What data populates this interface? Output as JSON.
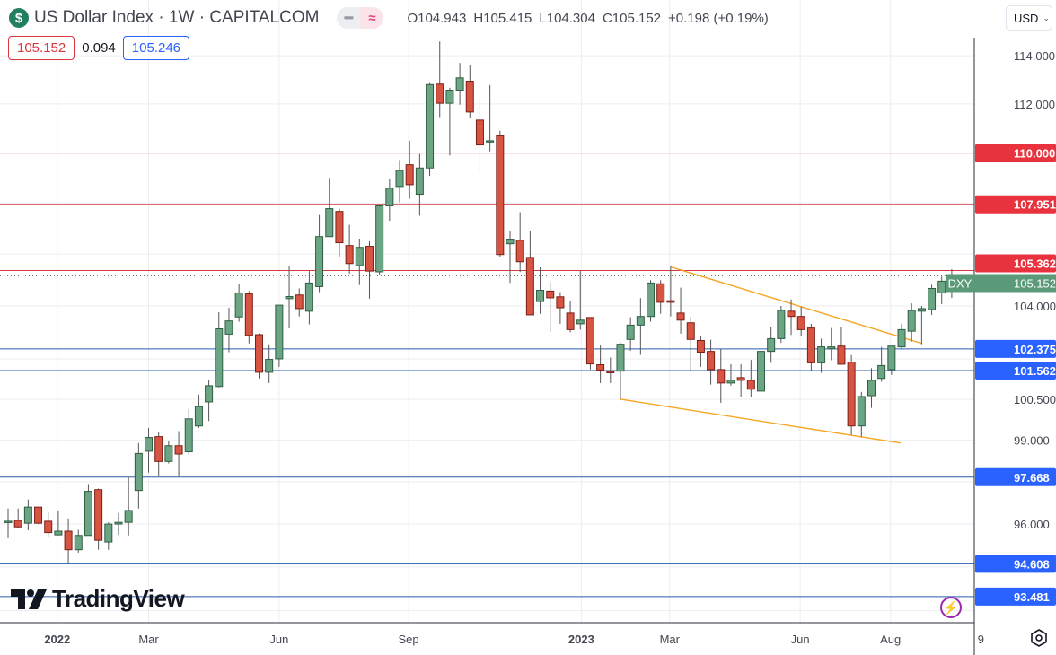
{
  "header": {
    "symbol_icon": "dollar-icon",
    "title": "US Dollar Index · 1W · CAPITALCOM",
    "ohlc": {
      "open": "O104.943",
      "high": "H105.415",
      "low": "L104.304",
      "close": "C105.152",
      "change": "+0.198 (+0.19%)"
    },
    "sell_price": "105.152",
    "spread": "0.094",
    "buy_price": "105.246"
  },
  "currency_button": "USD",
  "logo": "TradingView",
  "colors": {
    "up": "#6ba583",
    "down": "#d75442",
    "red_line": "#d9363e",
    "blue_line": "#2962ff",
    "trend": "#f5a623",
    "last": "#5b9a78"
  },
  "chart_data": {
    "type": "candlestick",
    "title": "US Dollar Index · 1W · CAPITALCOM",
    "scale": "log",
    "ylim": [
      92.9,
      115.2
    ],
    "price_ticks": [
      "114.000",
      "112.000",
      "104.000",
      "100.500",
      "99.000",
      "96.000"
    ],
    "price_tick_values": [
      114,
      112,
      104,
      100.5,
      99,
      96
    ],
    "grid_prices": [
      114,
      112,
      110,
      108,
      106,
      104,
      102,
      100.5,
      99,
      97.5,
      96,
      94.5,
      93
    ],
    "time_ticks": [
      {
        "label": "2022",
        "week": 4.9
      },
      {
        "label": "Mar",
        "week": 14
      },
      {
        "label": "Jun",
        "week": 27
      },
      {
        "label": "Sep",
        "week": 39.9
      },
      {
        "label": "2023",
        "week": 57.1
      },
      {
        "label": "Mar",
        "week": 65.9
      },
      {
        "label": "Jun",
        "week": 78.9
      },
      {
        "label": "Aug",
        "week": 87.9
      },
      {
        "label": "9",
        "week": 96.9
      }
    ],
    "candles_ohlc": [
      [
        96.1,
        96.55,
        95.5,
        96.1
      ],
      [
        96.13,
        96.55,
        95.85,
        95.9
      ],
      [
        96.03,
        96.87,
        95.78,
        96.6
      ],
      [
        96.6,
        96.6,
        96.0,
        96.03
      ],
      [
        96.1,
        96.4,
        95.55,
        95.7
      ],
      [
        95.62,
        96.48,
        95.6,
        95.75
      ],
      [
        95.75,
        96.2,
        94.6,
        95.1
      ],
      [
        95.1,
        95.8,
        95.0,
        95.6
      ],
      [
        95.6,
        97.42,
        95.6,
        97.16
      ],
      [
        97.22,
        97.26,
        95.1,
        95.43
      ],
      [
        95.37,
        96.06,
        95.1,
        96.0
      ],
      [
        96.0,
        96.39,
        95.62,
        96.06
      ],
      [
        96.06,
        97.68,
        95.6,
        96.48
      ],
      [
        97.19,
        98.9,
        96.55,
        98.52
      ],
      [
        98.6,
        99.45,
        97.83,
        99.1
      ],
      [
        99.13,
        99.3,
        97.7,
        98.23
      ],
      [
        98.23,
        98.97,
        98.16,
        98.8
      ],
      [
        98.8,
        99.33,
        97.68,
        98.5
      ],
      [
        98.58,
        100.14,
        98.48,
        99.78
      ],
      [
        99.52,
        100.67,
        99.45,
        100.23
      ],
      [
        100.4,
        101.2,
        99.7,
        101.0
      ],
      [
        100.97,
        103.76,
        100.94,
        103.13
      ],
      [
        102.93,
        103.93,
        102.25,
        103.43
      ],
      [
        103.58,
        104.85,
        103.4,
        104.5
      ],
      [
        104.46,
        104.57,
        102.58,
        102.88
      ],
      [
        102.91,
        102.95,
        101.27,
        101.5
      ],
      [
        101.5,
        102.55,
        101.1,
        101.98
      ],
      [
        102.0,
        104.03,
        101.7,
        104.03
      ],
      [
        104.28,
        105.55,
        103.15,
        104.36
      ],
      [
        104.42,
        104.67,
        103.6,
        103.9
      ],
      [
        103.8,
        105.34,
        103.3,
        104.88
      ],
      [
        104.74,
        107.53,
        104.53,
        106.68
      ],
      [
        106.68,
        109.0,
        106.68,
        107.78
      ],
      [
        107.67,
        107.78,
        105.9,
        106.44
      ],
      [
        106.33,
        107.14,
        105.24,
        105.63
      ],
      [
        105.55,
        106.6,
        104.8,
        106.26
      ],
      [
        106.3,
        106.5,
        104.28,
        105.34
      ],
      [
        105.31,
        107.96,
        105.2,
        107.89
      ],
      [
        107.89,
        108.98,
        107.3,
        108.59
      ],
      [
        108.66,
        109.72,
        108.03,
        109.3
      ],
      [
        109.53,
        110.5,
        108.17,
        108.73
      ],
      [
        108.35,
        109.96,
        107.5,
        109.4
      ],
      [
        109.4,
        112.9,
        109.08,
        112.8
      ],
      [
        112.82,
        114.6,
        111.46,
        112.03
      ],
      [
        112.03,
        112.67,
        109.9,
        112.57
      ],
      [
        112.57,
        113.7,
        111.97,
        113.08
      ],
      [
        112.94,
        113.62,
        111.43,
        111.67
      ],
      [
        111.34,
        112.3,
        109.22,
        110.33
      ],
      [
        110.45,
        112.78,
        110.07,
        110.5
      ],
      [
        110.7,
        110.9,
        105.9,
        105.98
      ],
      [
        106.4,
        106.9,
        104.88,
        106.58
      ],
      [
        106.54,
        107.64,
        105.3,
        105.7
      ],
      [
        105.87,
        106.9,
        103.66,
        103.66
      ],
      [
        104.17,
        105.48,
        103.7,
        104.6
      ],
      [
        104.57,
        104.92,
        103.0,
        104.31
      ],
      [
        104.35,
        104.53,
        103.32,
        103.93
      ],
      [
        103.73,
        104.2,
        103.0,
        103.1
      ],
      [
        103.32,
        105.34,
        103.1,
        103.46
      ],
      [
        103.56,
        103.56,
        101.6,
        101.81
      ],
      [
        101.78,
        102.5,
        101.1,
        101.58
      ],
      [
        101.53,
        102.05,
        101.1,
        101.5
      ],
      [
        101.54,
        102.6,
        100.5,
        102.55
      ],
      [
        102.73,
        103.57,
        102.3,
        103.27
      ],
      [
        103.27,
        104.3,
        102.15,
        103.6
      ],
      [
        103.6,
        104.99,
        103.4,
        104.88
      ],
      [
        104.85,
        104.99,
        103.7,
        104.14
      ],
      [
        104.2,
        105.55,
        103.6,
        104.14
      ],
      [
        103.73,
        104.7,
        102.95,
        103.46
      ],
      [
        103.36,
        103.57,
        101.54,
        102.73
      ],
      [
        102.69,
        102.86,
        101.7,
        102.25
      ],
      [
        102.28,
        102.72,
        101.04,
        101.6
      ],
      [
        101.6,
        102.38,
        100.37,
        101.1
      ],
      [
        101.1,
        101.8,
        101.0,
        101.2
      ],
      [
        101.3,
        101.8,
        100.57,
        101.2
      ],
      [
        101.2,
        101.96,
        100.57,
        100.87
      ],
      [
        100.8,
        102.3,
        100.6,
        102.28
      ],
      [
        102.28,
        103.2,
        101.85,
        102.76
      ],
      [
        102.76,
        104.0,
        102.6,
        103.83
      ],
      [
        103.8,
        104.25,
        102.9,
        103.6
      ],
      [
        103.6,
        103.97,
        102.86,
        103.1
      ],
      [
        103.16,
        103.32,
        101.57,
        101.85
      ],
      [
        101.85,
        102.76,
        101.48,
        102.45
      ],
      [
        102.38,
        103.16,
        101.95,
        102.45
      ],
      [
        102.48,
        103.2,
        101.78,
        101.8
      ],
      [
        101.88,
        102.14,
        99.2,
        99.52
      ],
      [
        99.52,
        100.77,
        99.13,
        100.6
      ],
      [
        100.63,
        101.65,
        100.18,
        101.2
      ],
      [
        101.27,
        102.45,
        101.15,
        101.75
      ],
      [
        101.6,
        102.48,
        101.4,
        102.48
      ],
      [
        102.45,
        103.32,
        102.38,
        103.1
      ],
      [
        103.04,
        104.1,
        102.65,
        103.83
      ],
      [
        103.8,
        104.0,
        102.55,
        103.9
      ],
      [
        103.86,
        104.81,
        103.66,
        104.67
      ],
      [
        104.5,
        105.13,
        104.07,
        104.95
      ],
      [
        104.943,
        105.415,
        104.304,
        105.152
      ]
    ],
    "horizontal_levels": [
      {
        "price": 110.0,
        "label": "110.000",
        "kind": "resistance"
      },
      {
        "price": 107.951,
        "label": "107.951",
        "kind": "resistance"
      },
      {
        "price": 105.362,
        "label": "105.362",
        "kind": "resistance"
      },
      {
        "price": 102.375,
        "label": "102.375",
        "kind": "support"
      },
      {
        "price": 101.562,
        "label": "101.562",
        "kind": "support"
      },
      {
        "price": 97.668,
        "label": "97.668",
        "kind": "support"
      },
      {
        "price": 94.608,
        "label": "94.608",
        "kind": "support"
      },
      {
        "price": 93.481,
        "label": "93.481",
        "kind": "support"
      }
    ],
    "trendlines": [
      {
        "from": {
          "week": 66.0,
          "price": 105.5
        },
        "to": {
          "week": 91.0,
          "price": 102.58
        }
      },
      {
        "from": {
          "week": 61.0,
          "price": 100.5
        },
        "to": {
          "week": 88.9,
          "price": 98.9
        }
      }
    ],
    "last_price": {
      "ticker": "DXY",
      "label": "105.152",
      "price": 105.152
    }
  }
}
